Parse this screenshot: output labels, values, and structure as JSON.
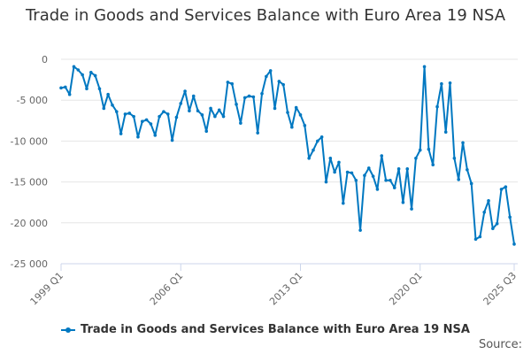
{
  "chart_data": {
    "type": "line",
    "title": "Trade in Goods and Services Balance with Euro Area 19 NSA",
    "xlabel": "",
    "ylabel": "",
    "ylim": [
      -25000,
      0
    ],
    "yticks": [
      0,
      -5000,
      -10000,
      -15000,
      -20000,
      -25000
    ],
    "ytick_labels": [
      "0",
      "-5 000",
      "-10 000",
      "-15 000",
      "-20 000",
      "-25 000"
    ],
    "xtick_labels": [
      "1999 Q1",
      "2006 Q1",
      "2013 Q1",
      "2020 Q1",
      "2025 Q3"
    ],
    "xtick_indices": [
      0,
      28,
      56,
      84,
      106
    ],
    "grid": true,
    "legend_placement": "bottom",
    "x_start": "1999 Q1",
    "x_end": "2025 Q3",
    "series": [
      {
        "name": "Trade in Goods and Services Balance with Euro Area 19 NSA",
        "color": "#0078c1",
        "values": [
          -3500,
          -3400,
          -4300,
          -900,
          -1300,
          -1900,
          -3600,
          -1600,
          -2000,
          -3600,
          -6000,
          -4300,
          -5600,
          -6400,
          -9100,
          -6700,
          -6600,
          -7000,
          -9500,
          -7600,
          -7400,
          -7900,
          -9300,
          -7000,
          -6400,
          -6700,
          -9900,
          -7100,
          -5400,
          -3900,
          -6300,
          -4500,
          -6300,
          -6800,
          -8800,
          -6000,
          -7000,
          -6200,
          -7000,
          -2800,
          -3000,
          -5500,
          -7800,
          -4700,
          -4500,
          -4600,
          -9000,
          -4200,
          -2100,
          -1400,
          -6000,
          -2700,
          -3100,
          -6500,
          -8300,
          -5900,
          -6800,
          -8100,
          -12100,
          -11100,
          -10000,
          -9500,
          -15000,
          -12100,
          -13800,
          -12600,
          -17600,
          -13800,
          -13900,
          -14800,
          -20900,
          -14200,
          -13300,
          -14300,
          -15900,
          -11800,
          -14800,
          -14800,
          -15700,
          -13400,
          -17500,
          -13400,
          -18300,
          -12100,
          -11100,
          -900,
          -11000,
          -12900,
          -5800,
          -3000,
          -8900,
          -2900,
          -12100,
          -14700,
          -10200,
          -13500,
          -15200,
          -22000,
          -21700,
          -18700,
          -17300,
          -20700,
          -20100,
          -15900,
          -15600,
          -19300,
          -22600
        ]
      }
    ]
  },
  "source_label": "Source:"
}
